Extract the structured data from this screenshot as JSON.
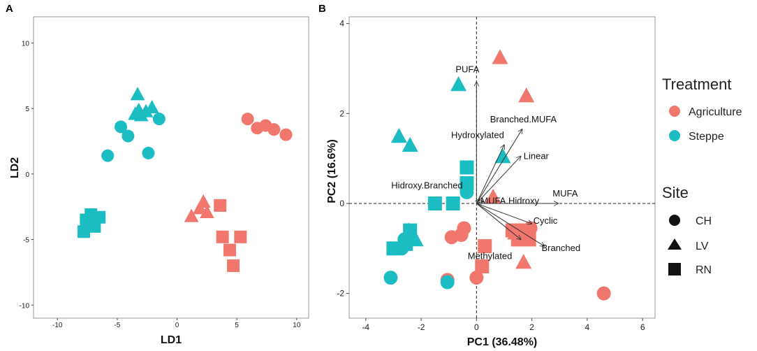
{
  "colors": {
    "agriculture": "#F0766E",
    "steppe": "#1CBDC2"
  },
  "chart_data": [
    {
      "panel": "A",
      "type": "scatter",
      "xlabel": "LD1",
      "ylabel": "LD2",
      "xlim": [
        -12,
        11
      ],
      "ylim": [
        -11,
        12
      ],
      "xticks": [
        -10,
        -5,
        0,
        5,
        10
      ],
      "yticks": [
        -10,
        -5,
        0,
        5,
        10
      ],
      "points": [
        {
          "x": -3.3,
          "y": 6.1,
          "group": "Steppe",
          "site": "LV"
        },
        {
          "x": -3.2,
          "y": 4.9,
          "group": "Steppe",
          "site": "LV"
        },
        {
          "x": -3.0,
          "y": 4.5,
          "group": "Steppe",
          "site": "LV"
        },
        {
          "x": -2.6,
          "y": 4.8,
          "group": "Steppe",
          "site": "LV"
        },
        {
          "x": -2.1,
          "y": 5.1,
          "group": "Steppe",
          "site": "LV"
        },
        {
          "x": -3.5,
          "y": 4.6,
          "group": "Steppe",
          "site": "LV"
        },
        {
          "x": -4.7,
          "y": 3.6,
          "group": "Steppe",
          "site": "CH"
        },
        {
          "x": -4.1,
          "y": 2.9,
          "group": "Steppe",
          "site": "CH"
        },
        {
          "x": -5.8,
          "y": 1.4,
          "group": "Steppe",
          "site": "CH"
        },
        {
          "x": -2.4,
          "y": 1.6,
          "group": "Steppe",
          "site": "CH"
        },
        {
          "x": -1.5,
          "y": 4.2,
          "group": "Steppe",
          "site": "CH"
        },
        {
          "x": -7.2,
          "y": -3.1,
          "group": "Steppe",
          "site": "RN"
        },
        {
          "x": -7.6,
          "y": -3.5,
          "group": "Steppe",
          "site": "RN"
        },
        {
          "x": -6.5,
          "y": -3.3,
          "group": "Steppe",
          "site": "RN"
        },
        {
          "x": -7.0,
          "y": -3.8,
          "group": "Steppe",
          "site": "RN"
        },
        {
          "x": -6.9,
          "y": -4.0,
          "group": "Steppe",
          "site": "RN"
        },
        {
          "x": -7.8,
          "y": -4.4,
          "group": "Steppe",
          "site": "RN"
        },
        {
          "x": 5.9,
          "y": 4.2,
          "group": "Agriculture",
          "site": "CH"
        },
        {
          "x": 6.7,
          "y": 3.5,
          "group": "Agriculture",
          "site": "CH"
        },
        {
          "x": 7.4,
          "y": 3.7,
          "group": "Agriculture",
          "site": "CH"
        },
        {
          "x": 8.1,
          "y": 3.4,
          "group": "Agriculture",
          "site": "CH"
        },
        {
          "x": 9.1,
          "y": 3.0,
          "group": "Agriculture",
          "site": "CH"
        },
        {
          "x": 2.2,
          "y": -2.1,
          "group": "Agriculture",
          "site": "LV"
        },
        {
          "x": 2.5,
          "y": -2.9,
          "group": "Agriculture",
          "site": "LV"
        },
        {
          "x": 1.2,
          "y": -3.2,
          "group": "Agriculture",
          "site": "LV"
        },
        {
          "x": 1.9,
          "y": -2.6,
          "group": "Agriculture",
          "site": "LV"
        },
        {
          "x": 3.6,
          "y": -2.4,
          "group": "Agriculture",
          "site": "RN"
        },
        {
          "x": 3.8,
          "y": -4.8,
          "group": "Agriculture",
          "site": "RN"
        },
        {
          "x": 5.3,
          "y": -4.8,
          "group": "Agriculture",
          "site": "RN"
        },
        {
          "x": 4.4,
          "y": -5.8,
          "group": "Agriculture",
          "site": "RN"
        },
        {
          "x": 4.7,
          "y": -7.0,
          "group": "Agriculture",
          "site": "RN"
        }
      ]
    },
    {
      "panel": "B",
      "type": "scatter",
      "xlabel": "PC1 (36.48%)",
      "ylabel": "PC2 (16.6%)",
      "xlim": [
        -4.6,
        6.45
      ],
      "ylim": [
        -2.55,
        4.15
      ],
      "xticks": [
        -4,
        -2,
        0,
        2,
        4,
        6
      ],
      "yticks": [
        -2,
        0,
        2,
        4
      ],
      "reference_lines": {
        "x": 0,
        "y": 0
      },
      "points": [
        {
          "x": 0.85,
          "y": 3.25,
          "group": "Agriculture",
          "site": "LV"
        },
        {
          "x": 1.8,
          "y": 2.4,
          "group": "Agriculture",
          "site": "LV"
        },
        {
          "x": 1.4,
          "y": -0.65,
          "group": "Agriculture",
          "site": "LV"
        },
        {
          "x": 1.7,
          "y": -1.3,
          "group": "Agriculture",
          "site": "LV"
        },
        {
          "x": 0.6,
          "y": 0.15,
          "group": "Agriculture",
          "site": "LV"
        },
        {
          "x": -0.9,
          "y": -0.75,
          "group": "Agriculture",
          "site": "CH"
        },
        {
          "x": -0.55,
          "y": -0.7,
          "group": "Agriculture",
          "site": "CH"
        },
        {
          "x": -0.45,
          "y": -0.55,
          "group": "Agriculture",
          "site": "CH"
        },
        {
          "x": -1.05,
          "y": -1.7,
          "group": "Agriculture",
          "site": "CH"
        },
        {
          "x": 0.0,
          "y": -1.65,
          "group": "Agriculture",
          "site": "CH"
        },
        {
          "x": 4.6,
          "y": -2.0,
          "group": "Agriculture",
          "site": "CH"
        },
        {
          "x": 1.6,
          "y": -0.6,
          "group": "Agriculture",
          "site": "RN"
        },
        {
          "x": 1.3,
          "y": -0.6,
          "group": "Agriculture",
          "site": "RN"
        },
        {
          "x": 1.9,
          "y": -0.8,
          "group": "Agriculture",
          "site": "RN"
        },
        {
          "x": 1.5,
          "y": -0.8,
          "group": "Agriculture",
          "site": "RN"
        },
        {
          "x": 0.3,
          "y": -0.95,
          "group": "Agriculture",
          "site": "RN"
        },
        {
          "x": 0.2,
          "y": -1.4,
          "group": "Agriculture",
          "site": "RN"
        },
        {
          "x": 1.95,
          "y": -0.55,
          "group": "Agriculture",
          "site": "CH"
        },
        {
          "x": -0.65,
          "y": 2.65,
          "group": "Steppe",
          "site": "LV"
        },
        {
          "x": -2.8,
          "y": 1.5,
          "group": "Steppe",
          "site": "LV"
        },
        {
          "x": -2.4,
          "y": 1.3,
          "group": "Steppe",
          "site": "LV"
        },
        {
          "x": 0.95,
          "y": 1.05,
          "group": "Steppe",
          "site": "LV"
        },
        {
          "x": -2.45,
          "y": -0.6,
          "group": "Steppe",
          "site": "LV"
        },
        {
          "x": -2.2,
          "y": -0.8,
          "group": "Steppe",
          "site": "LV"
        },
        {
          "x": -0.35,
          "y": 0.25,
          "group": "Steppe",
          "site": "CH"
        },
        {
          "x": -2.6,
          "y": -0.8,
          "group": "Steppe",
          "site": "CH"
        },
        {
          "x": -2.7,
          "y": -1.0,
          "group": "Steppe",
          "site": "CH"
        },
        {
          "x": -3.1,
          "y": -1.65,
          "group": "Steppe",
          "site": "CH"
        },
        {
          "x": -1.05,
          "y": -1.75,
          "group": "Steppe",
          "site": "CH"
        },
        {
          "x": -0.35,
          "y": 0.8,
          "group": "Steppe",
          "site": "RN"
        },
        {
          "x": -0.35,
          "y": 0.45,
          "group": "Steppe",
          "site": "RN"
        },
        {
          "x": -1.5,
          "y": 0.0,
          "group": "Steppe",
          "site": "RN"
        },
        {
          "x": -0.85,
          "y": 0.0,
          "group": "Steppe",
          "site": "RN"
        },
        {
          "x": -2.4,
          "y": -0.6,
          "group": "Steppe",
          "site": "RN"
        },
        {
          "x": -3.0,
          "y": -1.0,
          "group": "Steppe",
          "site": "RN"
        },
        {
          "x": -2.55,
          "y": -0.9,
          "group": "Steppe",
          "site": "RN"
        }
      ],
      "loadings": [
        {
          "name": "PUFA",
          "x": 0.0,
          "y": 2.7
        },
        {
          "name": "Branched.MUFA",
          "x": 1.65,
          "y": 1.65
        },
        {
          "name": "Hydroxylated",
          "x": 1.0,
          "y": 1.3
        },
        {
          "name": "Linear",
          "x": 1.6,
          "y": 1.05
        },
        {
          "name": "Hidroxy.Branched",
          "x": 0.1,
          "y": 0.1
        },
        {
          "name": "MUFA.Hidroxy",
          "x": 0.25,
          "y": 0.05
        },
        {
          "name": "MUFA",
          "x": 2.95,
          "y": 0.0
        },
        {
          "name": "Cyclic",
          "x": 2.0,
          "y": -0.45
        },
        {
          "name": "Branched",
          "x": 2.45,
          "y": -0.95
        },
        {
          "name": "Methylated",
          "x": 1.6,
          "y": -0.8
        }
      ],
      "legend": {
        "color_title": "Treatment",
        "color_items": [
          "Agriculture",
          "Steppe"
        ],
        "shape_title": "Site",
        "shape_items": [
          "CH",
          "LV",
          "RN"
        ],
        "placement": "right"
      }
    }
  ]
}
